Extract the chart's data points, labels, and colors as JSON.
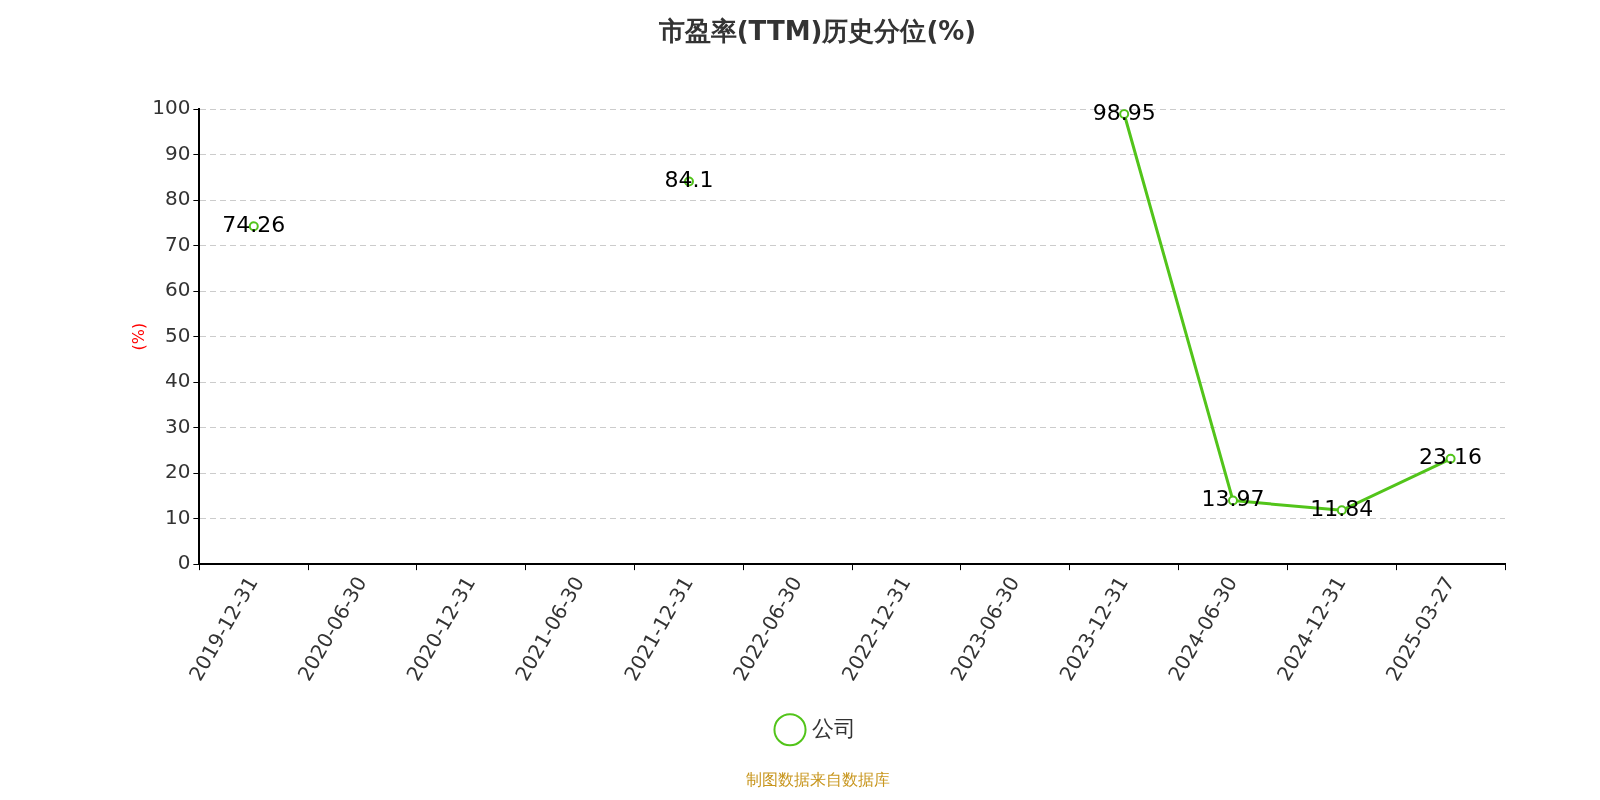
{
  "chart_data": {
    "type": "line",
    "title": "市盈率(TTM)历史分位(%)",
    "ylabel": "(%)",
    "annotations": [
      "制图数据来自数据库"
    ],
    "categories": [
      "2019-12-31",
      "2020-06-30",
      "2020-12-31",
      "2021-06-30",
      "2021-12-31",
      "2022-06-30",
      "2022-12-31",
      "2023-06-30",
      "2023-12-31",
      "2024-06-30",
      "2024-12-31",
      "2025-03-27"
    ],
    "series": [
      {
        "name": "公司",
        "color": "#52c41a",
        "values": [
          74.26,
          null,
          null,
          null,
          84.1,
          null,
          null,
          null,
          98.95,
          13.97,
          11.84,
          23.16
        ]
      }
    ],
    "ylim": [
      0,
      100
    ],
    "yticks": [
      0,
      10,
      20,
      30,
      40,
      50,
      60,
      70,
      80,
      90,
      100
    ],
    "grid": "y",
    "legend": "bottom",
    "marker": "circle",
    "line_style": "solid",
    "data_labels": true
  }
}
